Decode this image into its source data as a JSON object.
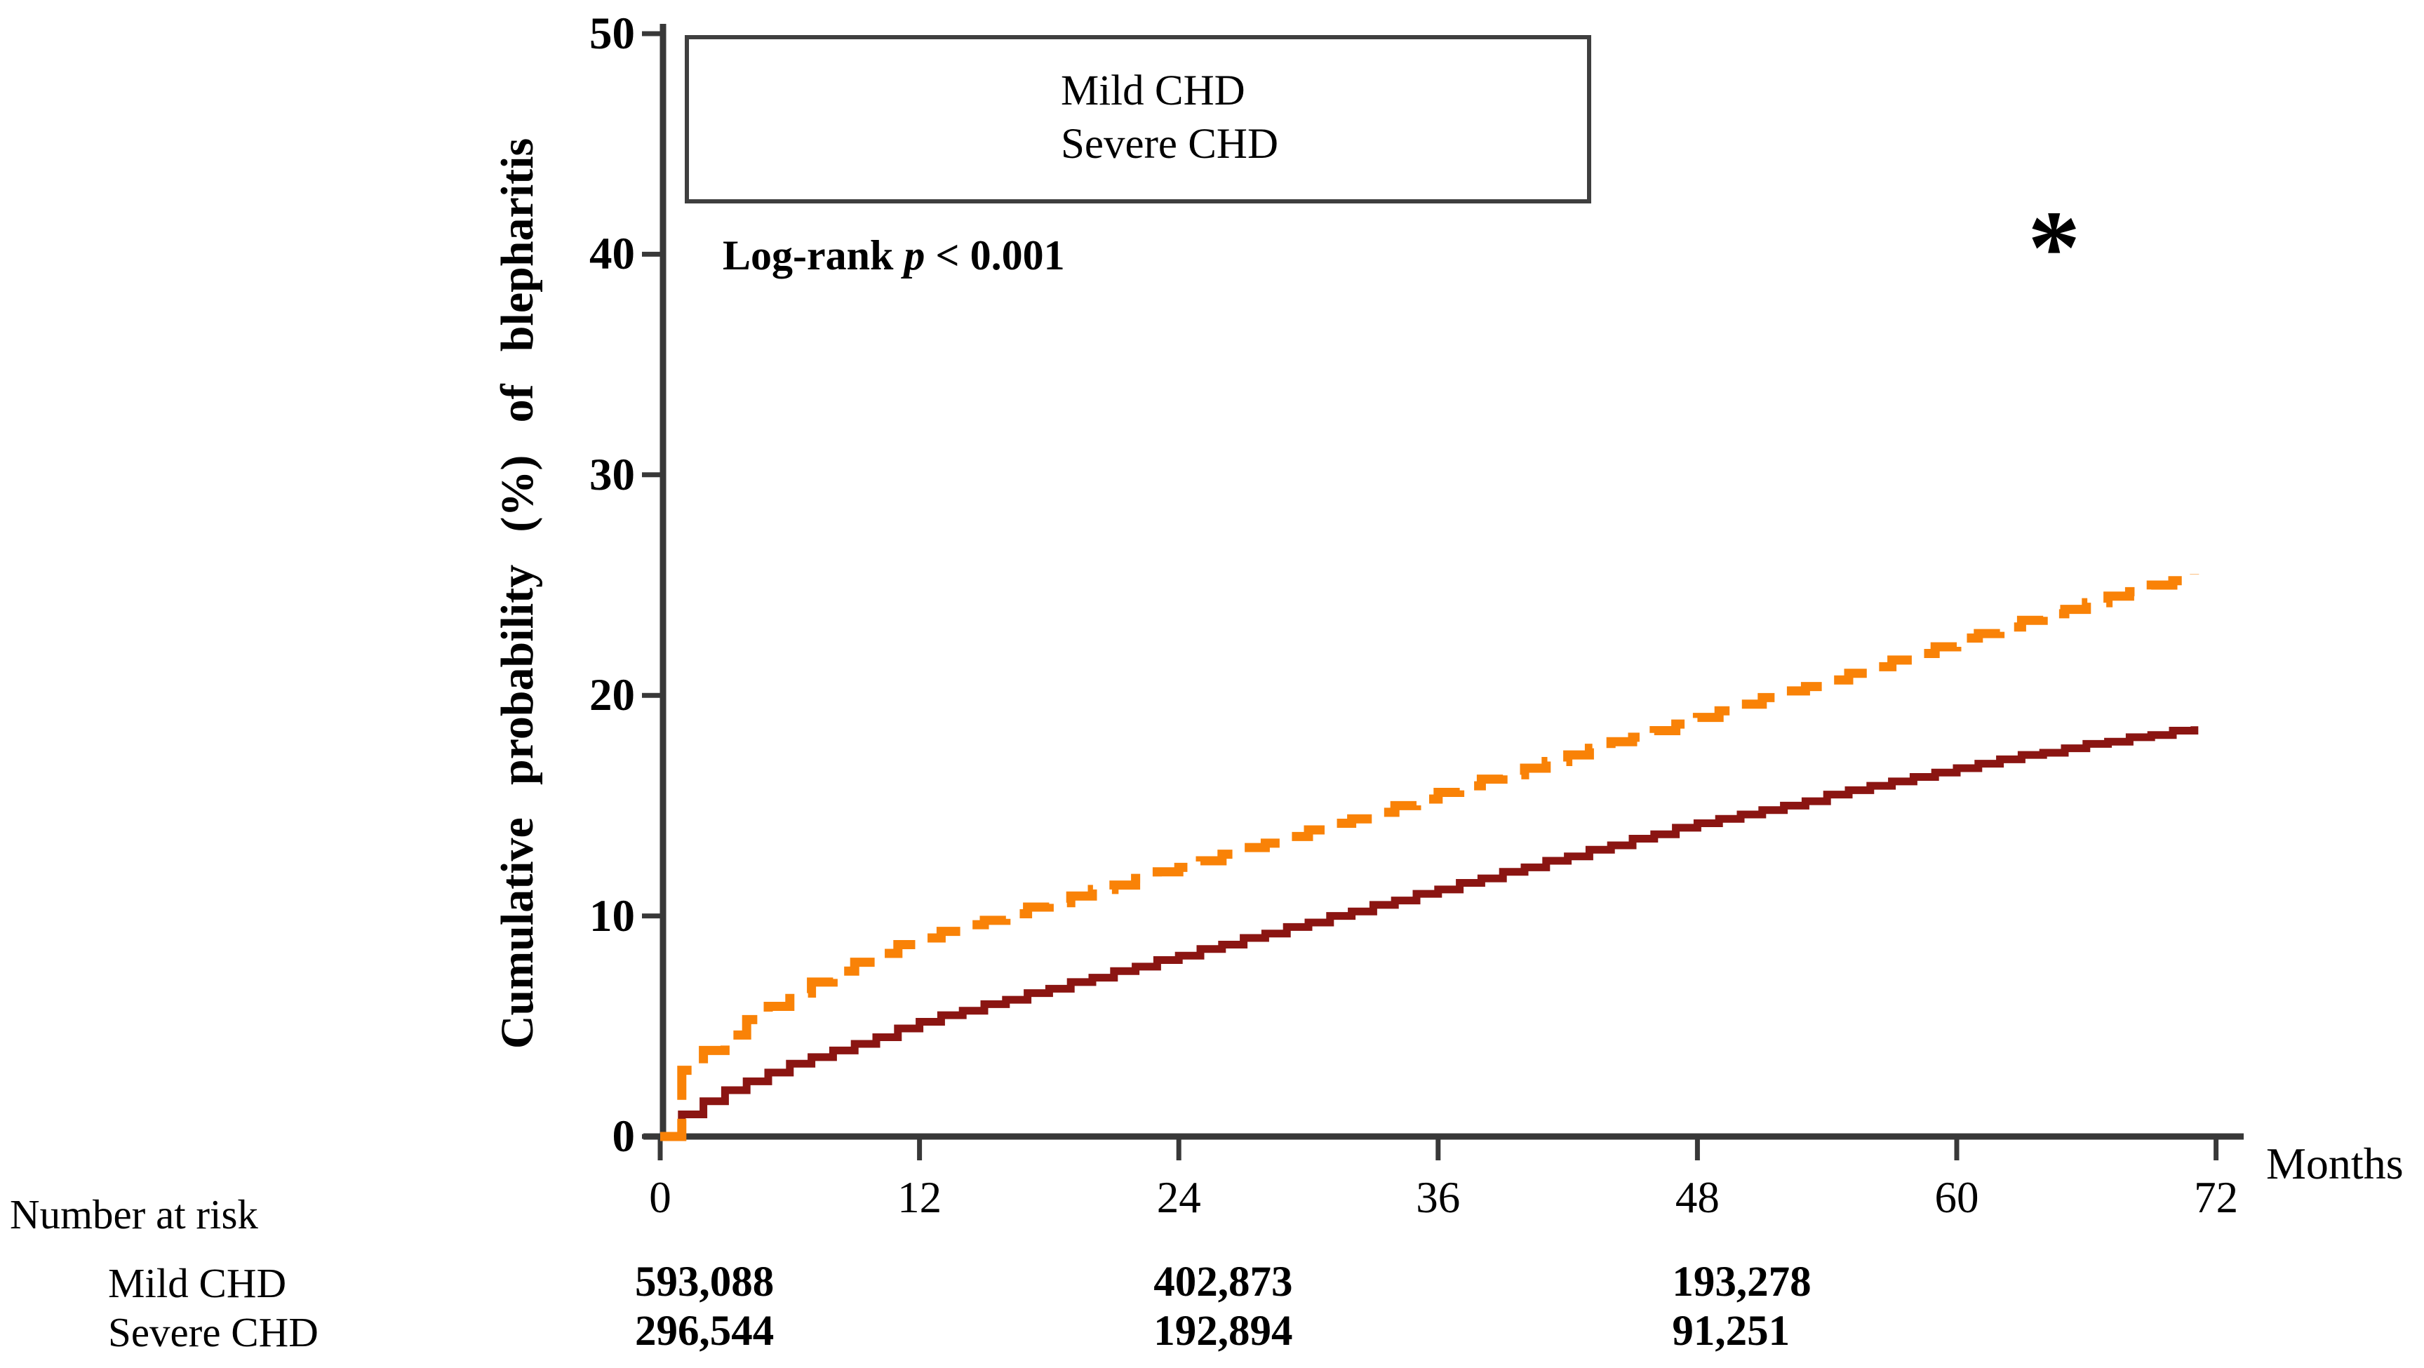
{
  "chart_data": {
    "type": "line",
    "subtype": "kaplan-meier-cumulative-incidence-steps",
    "title": "",
    "x_axis": {
      "label": "Months",
      "ticks": [
        0,
        12,
        24,
        36,
        48,
        60,
        72
      ],
      "range": [
        0,
        72
      ]
    },
    "y_axis": {
      "label": "Cumulative probability (%) of blepharitis",
      "ticks": [
        0,
        10,
        20,
        30,
        40,
        50
      ],
      "range": [
        0,
        50
      ]
    },
    "grid": "off",
    "legend_position": "top-left-inside",
    "x_step_months": 1,
    "series": [
      {
        "name": "Mild CHD",
        "color": "#8B1512",
        "line_style": "solid",
        "values_by_month": [
          0,
          1.0,
          1.6,
          2.1,
          2.5,
          2.9,
          3.3,
          3.6,
          3.9,
          4.2,
          4.5,
          4.9,
          5.2,
          5.5,
          5.7,
          6.0,
          6.2,
          6.5,
          6.7,
          7.0,
          7.2,
          7.5,
          7.7,
          8.0,
          8.2,
          8.5,
          8.7,
          9.0,
          9.2,
          9.5,
          9.7,
          10.0,
          10.2,
          10.5,
          10.7,
          11.0,
          11.2,
          11.5,
          11.7,
          12.0,
          12.2,
          12.5,
          12.7,
          13.0,
          13.2,
          13.5,
          13.7,
          14.0,
          14.2,
          14.4,
          14.6,
          14.8,
          15.0,
          15.2,
          15.5,
          15.7,
          15.9,
          16.1,
          16.3,
          16.5,
          16.7,
          16.9,
          17.1,
          17.3,
          17.4,
          17.6,
          17.8,
          17.9,
          18.1,
          18.2,
          18.4,
          18.6
        ]
      },
      {
        "name": "Severe CHD",
        "color": "#F98207",
        "line_style": "dashed",
        "values_by_month": [
          0,
          3.0,
          3.9,
          4.6,
          5.3,
          5.9,
          6.5,
          7.0,
          7.5,
          7.9,
          8.3,
          8.7,
          9.0,
          9.3,
          9.6,
          9.8,
          10.1,
          10.4,
          10.6,
          10.9,
          11.2,
          11.4,
          11.7,
          12.0,
          12.2,
          12.5,
          12.8,
          13.1,
          13.3,
          13.6,
          13.9,
          14.2,
          14.4,
          14.7,
          15.0,
          15.3,
          15.6,
          15.9,
          16.2,
          16.4,
          16.7,
          17.0,
          17.3,
          17.6,
          17.9,
          18.1,
          18.4,
          18.7,
          19.0,
          19.3,
          19.6,
          19.9,
          20.2,
          20.4,
          20.7,
          21.0,
          21.3,
          21.6,
          21.9,
          22.2,
          22.6,
          22.8,
          23.1,
          23.4,
          23.7,
          23.9,
          24.2,
          24.5,
          24.7,
          25.0,
          25.2,
          25.5
        ]
      }
    ],
    "annotations": {
      "log_rank_prefix": "Log-rank ",
      "log_rank_p": "p",
      "log_rank_rest": " < 0.001",
      "asterisk": "*",
      "asterisk_at": {
        "month": 64,
        "value": 39.5
      }
    },
    "number_at_risk": {
      "title": "Number at risk",
      "months": [
        0,
        24,
        48
      ],
      "rows": [
        {
          "label": "Mild CHD",
          "counts": [
            "593,088",
            "402,873",
            "193,278"
          ]
        },
        {
          "label": "Severe CHD",
          "counts": [
            "296,544",
            "192,894",
            "91,251"
          ]
        }
      ]
    },
    "colors": {
      "axis": "#383838",
      "text": "#000000",
      "mild_chd": "#8B1512",
      "severe_chd": "#F98207",
      "legend_border": "#3F3F3F"
    }
  }
}
